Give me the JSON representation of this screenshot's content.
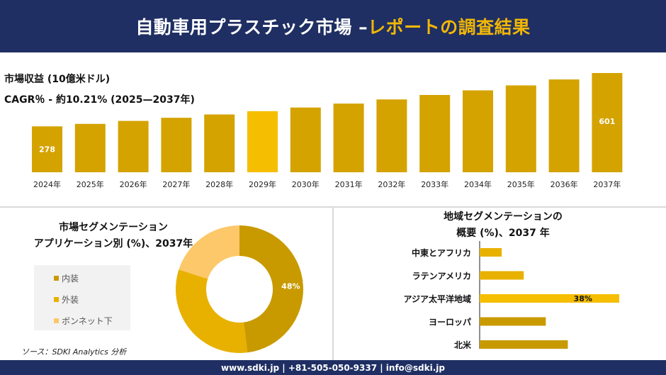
{
  "header": {
    "title_main": "自動車用プラスチック市場 –",
    "title_accent": "レポートの調査結果"
  },
  "market": {
    "revenue_label": "市場収益 (10億米ドル)",
    "cagr_label": "CAGR％ - 約10.21% (2025—2037年)"
  },
  "chart_data": [
    {
      "type": "bar",
      "categories": [
        "2024年",
        "2025年",
        "2026年",
        "2027年",
        "2028年",
        "2029年",
        "2030年",
        "2031年",
        "2032年",
        "2033年",
        "2034年",
        "2035年",
        "2036年",
        "2037年"
      ],
      "values": [
        278,
        293,
        311,
        330,
        350,
        370,
        392,
        416,
        441,
        468,
        496,
        526,
        562,
        601
      ],
      "data_labels": {
        "0": "278",
        "13": "601"
      },
      "colors": {
        "bar": "#d4a300",
        "bar_highlight": "#f5be00",
        "label": "#ffffff"
      },
      "highlight_index": 5,
      "grid": false
    },
    {
      "type": "pie",
      "title_lines": [
        "市場セグメンテーション",
        "アプリケーション別 (%)、2037年"
      ],
      "labels": [
        "内装",
        "外装",
        "ボンネット下"
      ],
      "values": [
        48,
        32,
        20
      ],
      "colors": [
        "#c89a00",
        "#e8b100",
        "#fdc86a"
      ],
      "data_labels": {
        "0": "48%"
      },
      "legend": "left"
    },
    {
      "type": "bar",
      "orientation": "horizontal",
      "title_lines": [
        "地域セグメンテーションの",
        "概要 (%)、2037 年"
      ],
      "categories": [
        "中東とアフリカ",
        "ラテンアメリカ",
        "アジア太平洋地域",
        "ヨーロッパ",
        "北米"
      ],
      "values": [
        6,
        12,
        38,
        18,
        24
      ],
      "data_labels": {
        "2": "38%"
      },
      "colors": [
        "#e8b100",
        "#e8b100",
        "#f5be00",
        "#c89a00",
        "#c89a00"
      ],
      "grid": false
    }
  ],
  "source": "ソース：SDKI Analytics 分析",
  "footer": "www.sdki.jp | +81-505-050-9337 | info@sdki.jp"
}
